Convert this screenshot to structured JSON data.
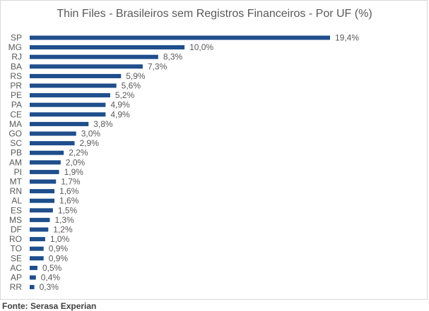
{
  "chart_data": {
    "type": "bar",
    "orientation": "horizontal",
    "title": "Thin Files - Brasileiros sem Registros Financeiros - Por UF (%)",
    "categories": [
      "SP",
      "MG",
      "RJ",
      "BA",
      "RS",
      "PR",
      "PE",
      "PA",
      "CE",
      "MA",
      "GO",
      "SC",
      "PB",
      "AM",
      "PI",
      "MT",
      "RN",
      "AL",
      "ES",
      "MS",
      "DF",
      "RO",
      "TO",
      "SE",
      "AC",
      "AP",
      "RR"
    ],
    "values": [
      19.4,
      10.0,
      8.3,
      7.3,
      5.9,
      5.6,
      5.2,
      4.9,
      4.9,
      3.8,
      3.0,
      2.9,
      2.2,
      2.0,
      1.9,
      1.7,
      1.6,
      1.6,
      1.5,
      1.3,
      1.2,
      1.0,
      0.9,
      0.9,
      0.5,
      0.4,
      0.3
    ],
    "value_labels": [
      "19,4%",
      "10,0%",
      "8,3%",
      "7,3%",
      "5,9%",
      "5,6%",
      "5,2%",
      "4,9%",
      "4,9%",
      "3,8%",
      "3,0%",
      "2,9%",
      "2,2%",
      "2,0%",
      "1,9%",
      "1,7%",
      "1,6%",
      "1,6%",
      "1,5%",
      "1,3%",
      "1,2%",
      "1,0%",
      "0,9%",
      "0,9%",
      "0,5%",
      "0,4%",
      "0,3%"
    ],
    "bar_color": "#1f4e8c",
    "xlim": [
      0,
      20
    ],
    "grid": false,
    "legend": "none"
  },
  "source_note": "Fonte: Serasa Experian"
}
